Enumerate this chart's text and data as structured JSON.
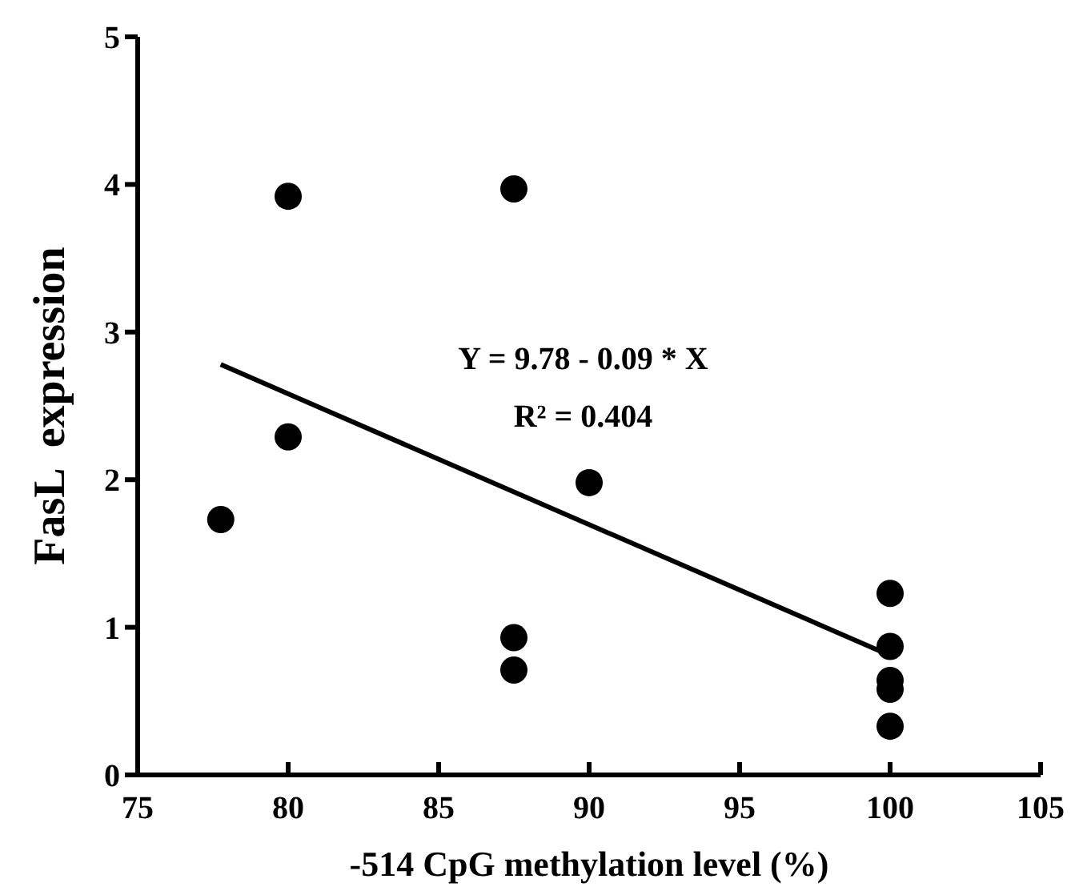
{
  "chart_data": {
    "type": "scatter",
    "xlabel": "-514 CpG methylation level (%)",
    "ylabel": "FasL  expression",
    "xlim": [
      75,
      105
    ],
    "xticks": [
      75,
      80,
      85,
      90,
      95,
      100,
      105
    ],
    "ylim": [
      0,
      5
    ],
    "yticks": [
      0,
      1,
      2,
      3,
      4,
      5
    ],
    "grid": false,
    "annotations": [
      "Y = 9.78 - 0.09 * X",
      "R² = 0.404"
    ],
    "series": [
      {
        "color": "#000000",
        "marker": "circle",
        "x": [
          77.76,
          80,
          80,
          87.5,
          87.5,
          87.5,
          90,
          100,
          100,
          100,
          100,
          100
        ],
        "values": [
          1.73,
          3.92,
          2.29,
          3.97,
          0.93,
          0.71,
          1.98,
          1.23,
          0.87,
          0.64,
          0.58,
          0.33
        ]
      },
      {
        "type": "line",
        "color": "#000000",
        "x": [
          77.76,
          100
        ],
        "values": [
          2.78,
          0.81
        ],
        "line_style": "solid",
        "marker": "none"
      }
    ]
  }
}
